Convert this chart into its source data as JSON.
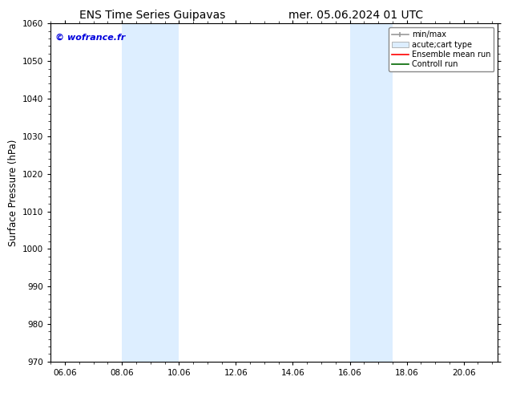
{
  "title_left": "ENS Time Series Guipavas",
  "title_right": "mer. 05.06.2024 01 UTC",
  "ylabel": "Surface Pressure (hPa)",
  "ylim": [
    970,
    1060
  ],
  "yticks": [
    970,
    980,
    990,
    1000,
    1010,
    1020,
    1030,
    1040,
    1050,
    1060
  ],
  "xlim_start": 5.5,
  "xlim_end": 21.2,
  "xtick_labels": [
    "06.06",
    "08.06",
    "10.06",
    "12.06",
    "14.06",
    "16.06",
    "18.06",
    "20.06"
  ],
  "xtick_positions": [
    6.0,
    8.0,
    10.0,
    12.0,
    14.0,
    16.0,
    18.0,
    20.0
  ],
  "shaded_bands": [
    {
      "x_start": 8.0,
      "x_end": 10.0
    },
    {
      "x_start": 16.0,
      "x_end": 17.5
    }
  ],
  "shaded_color": "#ddeeff",
  "background_color": "#ffffff",
  "watermark_text": "© wofrance.fr",
  "watermark_color": "#0000dd",
  "title_fontsize": 10,
  "tick_fontsize": 7.5,
  "ylabel_fontsize": 8.5,
  "watermark_fontsize": 8
}
